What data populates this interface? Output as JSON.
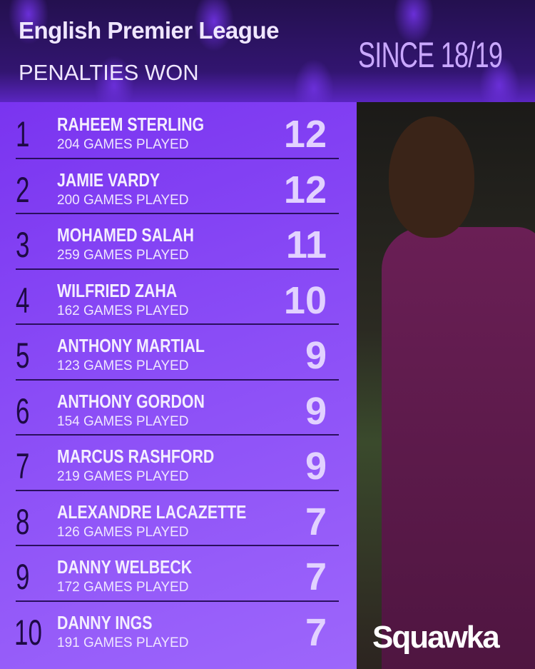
{
  "header": {
    "title": "English Premier League",
    "subtitle": "PENALTIES WON",
    "since": "SINCE 18/19"
  },
  "rows": [
    {
      "rank": "1",
      "name": "RAHEEM STERLING",
      "games": "204 GAMES PLAYED",
      "value": "12"
    },
    {
      "rank": "2",
      "name": "JAMIE VARDY",
      "games": "200 GAMES PLAYED",
      "value": "12"
    },
    {
      "rank": "3",
      "name": "MOHAMED SALAH",
      "games": "259 GAMES PLAYED",
      "value": "11"
    },
    {
      "rank": "4",
      "name": "WILFRIED ZAHA",
      "games": "162 GAMES PLAYED",
      "value": "10"
    },
    {
      "rank": "5",
      "name": "ANTHONY MARTIAL",
      "games": "123 GAMES PLAYED",
      "value": "9"
    },
    {
      "rank": "6",
      "name": "ANTHONY GORDON",
      "games": "154 GAMES PLAYED",
      "value": "9"
    },
    {
      "rank": "7",
      "name": "MARCUS RASHFORD",
      "games": "219 GAMES PLAYED",
      "value": "9"
    },
    {
      "rank": "8",
      "name": "ALEXANDRE LACAZETTE",
      "games": "126 GAMES PLAYED",
      "value": "7"
    },
    {
      "rank": "9",
      "name": "DANNY WELBECK",
      "games": "172 GAMES PLAYED",
      "value": "7"
    },
    {
      "rank": "10",
      "name": "DANNY INGS",
      "games": "191 GAMES PLAYED",
      "value": "7"
    }
  ],
  "brand": {
    "logo": "Squawka"
  },
  "colors": {
    "panel": "#8a4cf6",
    "header_bg": "#2a0f5e",
    "text": "#efe6ff",
    "accent": "#c9a8ff"
  }
}
